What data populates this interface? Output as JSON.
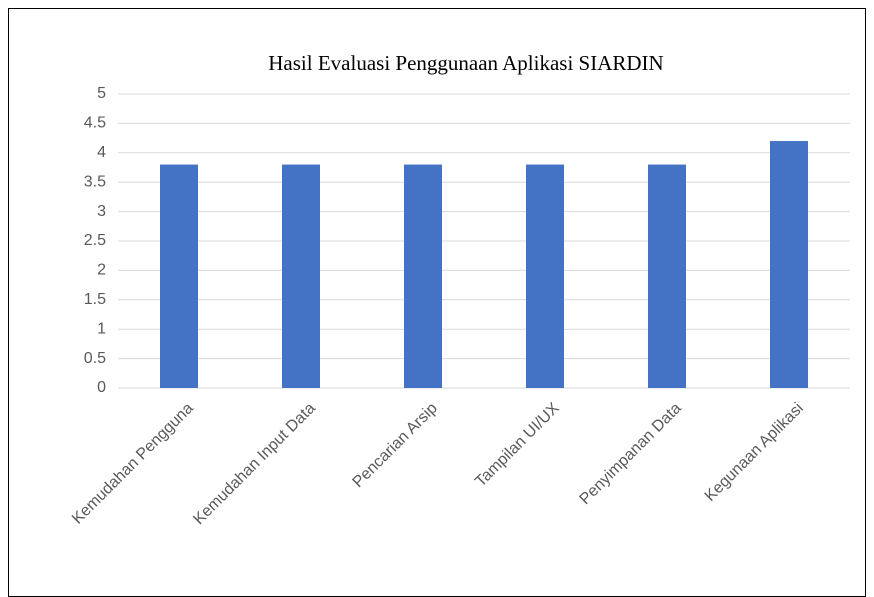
{
  "chart_data": {
    "type": "bar",
    "title": "Hasil Evaluasi Penggunaan Aplikasi SIARDIN",
    "categories": [
      "Kemudahan Pengguna",
      "Kemudahan Input Data",
      "Pencarian Arsip",
      "Tampilan UI/UX",
      "Penyimpanan Data",
      "Kegunaan Aplikasi"
    ],
    "values": [
      3.8,
      3.8,
      3.8,
      3.8,
      3.8,
      4.2
    ],
    "color": "#4472c4",
    "ylim": [
      0,
      5
    ],
    "yticks": [
      0,
      0.5,
      1,
      1.5,
      2,
      2.5,
      3,
      3.5,
      4,
      4.5,
      5
    ],
    "grid": true
  }
}
